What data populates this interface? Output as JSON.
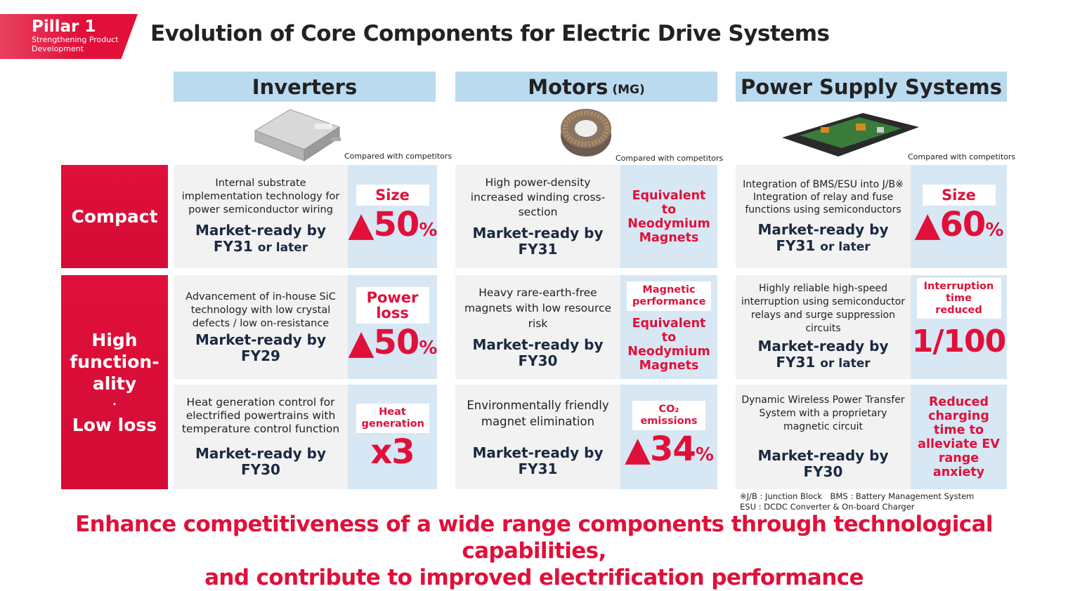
{
  "pillar": {
    "title": "Pillar 1",
    "subtitle": "Strengthening Product Development"
  },
  "title": "Evolution of Core Components for Electric Drive Systems",
  "columns": [
    {
      "name": "Inverters",
      "suffix": "",
      "compared": "Compared with competitors"
    },
    {
      "name": "Motors",
      "suffix": "(MG)",
      "compared": "Compared with competitors"
    },
    {
      "name": "Power Supply Systems",
      "suffix": "",
      "compared": "Compared with competitors"
    }
  ],
  "rows": {
    "compact": "Compact",
    "high_function": [
      "High",
      "function-",
      "ality",
      "・",
      "Low loss"
    ]
  },
  "cells": {
    "inv_compact": {
      "desc": "Internal substrate implementation technology for power semiconductor wiring",
      "mr": "Market-ready by",
      "fy": "FY31",
      "later": "or later",
      "box": "Size",
      "num": "▲50",
      "unit": "%"
    },
    "mot_compact": {
      "desc": "High power-density increased winding cross-section",
      "mr": "Market-ready by",
      "fy": "FY31",
      "hl": "Equivalent to Neodymium Magnets"
    },
    "pss_compact": {
      "desc": "Integration of BMS/ESU into J/B※ Integration of relay and fuse functions using semiconductors",
      "mr": "Market-ready by",
      "fy": "FY31",
      "later": "or later",
      "box": "Size",
      "num": "▲60",
      "unit": "%"
    },
    "inv_hf1": {
      "desc": "Advancement of in-house SiC technology with low crystal defects / low on-resistance",
      "mr": "Market-ready by",
      "fy": "FY29",
      "box": "Power loss",
      "num": "▲50",
      "unit": "%"
    },
    "mot_hf1": {
      "desc": "Heavy rare-earth-free magnets with low resource risk",
      "mr": "Market-ready by",
      "fy": "FY30",
      "box": "Magnetic performance",
      "hl": "Equivalent to Neodymium Magnets"
    },
    "pss_hf1": {
      "desc": "Highly reliable high-speed interruption using semiconductor relays and surge suppression circuits",
      "mr": "Market-ready by",
      "fy": "FY31",
      "later": "or later",
      "box": "Interruption time reduced",
      "num": "1/100"
    },
    "inv_hf2": {
      "desc": "Heat generation control for electrified powertrains with temperature control function",
      "mr": "Market-ready by",
      "fy": "FY30",
      "box": "Heat generation",
      "num": "x3"
    },
    "mot_hf2": {
      "desc": "Environmentally friendly magnet elimination",
      "mr": "Market-ready by",
      "fy": "FY31",
      "box": "CO₂ emissions",
      "num": "▲34",
      "unit": "%"
    },
    "pss_hf2": {
      "desc": "Dynamic Wireless Power Transfer System with a proprietary magnetic circuit",
      "mr": "Market-ready by",
      "fy": "FY30",
      "hl": "Reduced charging time to alleviate EV range anxiety"
    }
  },
  "footnote": [
    "※J/B : Junction Block　BMS : Battery Management System",
    "ESU : DCDC Converter & On-board Charger"
  ],
  "tagline": [
    "Enhance competitiveness of a wide range components through technological capabilities,",
    "and contribute to improved electrification performance"
  ],
  "colors": {
    "accent": "#e0103a",
    "navy": "#1b2a42",
    "header": "#b9daef",
    "highlight": "#d7e7f3"
  }
}
